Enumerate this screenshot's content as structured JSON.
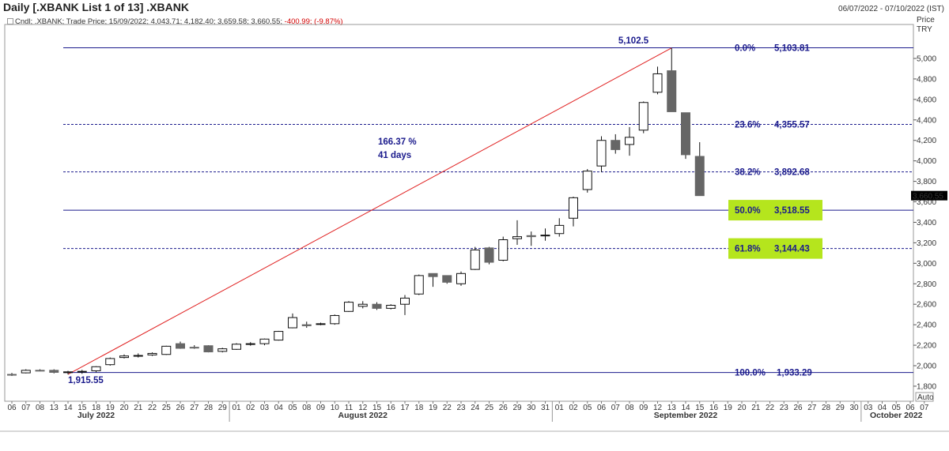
{
  "header": {
    "title": "Daily [.XBANK List 1 of 13] .XBANK",
    "date_range": "06/07/2022 - 07/10/2022 (IST)",
    "legend_prefix": "Cndl; .XBANK; Trade Price; 15/09/2022; 4,043.71; 4,182.40; 3,659.58; 3,660.55;",
    "legend_change": "-400.99; (-9.87%)"
  },
  "colors": {
    "up_candle": "#ffffff",
    "down_candle": "#666666",
    "fib_line": "#1a1a8c",
    "trend_line": "#e02020",
    "highlight": "#b5e51d",
    "last_price_bg": "#000000"
  },
  "chart_data": {
    "type": "candlestick",
    "y_axis": {
      "label": "Price",
      "unit": "TRY",
      "ylim": [
        1700,
        5250
      ],
      "ticks": [
        1800,
        2000,
        2200,
        2400,
        2600,
        2800,
        3000,
        3200,
        3400,
        3600,
        3800,
        4000,
        4200,
        4400,
        4600,
        4800,
        5000
      ],
      "tick_labels": [
        "1,800",
        "2,000",
        "2,200",
        "2,400",
        "2,600",
        "2,800",
        "3,000",
        "3,200",
        "3,400",
        "3,600",
        "3,800",
        "4,000",
        "4,200",
        "4,400",
        "4,600",
        "4,800",
        "5,000"
      ],
      "scale_mode": "Auto"
    },
    "x_labels": [
      "06",
      "07",
      "08",
      "13",
      "14",
      "15",
      "18",
      "19",
      "20",
      "21",
      "22",
      "25",
      "26",
      "27",
      "28",
      "29",
      "01",
      "02",
      "03",
      "04",
      "05",
      "08",
      "09",
      "10",
      "11",
      "12",
      "15",
      "16",
      "17",
      "18",
      "19",
      "22",
      "23",
      "24",
      "25",
      "26",
      "29",
      "30",
      "31",
      "01",
      "02",
      "05",
      "06",
      "07",
      "08",
      "09",
      "12",
      "13",
      "14",
      "15",
      "16",
      "19",
      "20",
      "21",
      "22",
      "23",
      "26",
      "27",
      "28",
      "29",
      "30",
      "03",
      "04",
      "05",
      "06",
      "07"
    ],
    "months": [
      {
        "label": "July 2022",
        "index": 6
      },
      {
        "label": "August 2022",
        "index": 25
      },
      {
        "label": "September 2022",
        "index": 48
      },
      {
        "label": "October 2022",
        "index": 63
      }
    ],
    "month_separators": [
      16,
      39,
      61
    ],
    "candles": [
      {
        "o": 1915,
        "h": 1930,
        "l": 1900,
        "c": 1912
      },
      {
        "o": 1930,
        "h": 1965,
        "l": 1925,
        "c": 1955
      },
      {
        "o": 1955,
        "h": 1965,
        "l": 1945,
        "c": 1952
      },
      {
        "o": 1955,
        "h": 1965,
        "l": 1925,
        "c": 1935
      },
      {
        "o": 1935,
        "h": 1950,
        "l": 1915,
        "c": 1940
      },
      {
        "o": 1940,
        "h": 1960,
        "l": 1920,
        "c": 1945
      },
      {
        "o": 1950,
        "h": 1995,
        "l": 1935,
        "c": 1990
      },
      {
        "o": 2010,
        "h": 2080,
        "l": 2000,
        "c": 2070
      },
      {
        "o": 2080,
        "h": 2110,
        "l": 2070,
        "c": 2095
      },
      {
        "o": 2095,
        "h": 2120,
        "l": 2080,
        "c": 2100
      },
      {
        "o": 2105,
        "h": 2130,
        "l": 2095,
        "c": 2120
      },
      {
        "o": 2110,
        "h": 2195,
        "l": 2105,
        "c": 2190
      },
      {
        "o": 2215,
        "h": 2235,
        "l": 2165,
        "c": 2170
      },
      {
        "o": 2180,
        "h": 2200,
        "l": 2165,
        "c": 2175
      },
      {
        "o": 2195,
        "h": 2200,
        "l": 2130,
        "c": 2135
      },
      {
        "o": 2140,
        "h": 2175,
        "l": 2130,
        "c": 2165
      },
      {
        "o": 2160,
        "h": 2220,
        "l": 2155,
        "c": 2210
      },
      {
        "o": 2210,
        "h": 2230,
        "l": 2195,
        "c": 2215
      },
      {
        "o": 2215,
        "h": 2265,
        "l": 2200,
        "c": 2260
      },
      {
        "o": 2250,
        "h": 2340,
        "l": 2245,
        "c": 2335
      },
      {
        "o": 2370,
        "h": 2510,
        "l": 2365,
        "c": 2470
      },
      {
        "o": 2400,
        "h": 2430,
        "l": 2370,
        "c": 2390
      },
      {
        "o": 2410,
        "h": 2420,
        "l": 2395,
        "c": 2410
      },
      {
        "o": 2410,
        "h": 2500,
        "l": 2400,
        "c": 2490
      },
      {
        "o": 2530,
        "h": 2630,
        "l": 2525,
        "c": 2620
      },
      {
        "o": 2580,
        "h": 2630,
        "l": 2560,
        "c": 2600
      },
      {
        "o": 2600,
        "h": 2620,
        "l": 2545,
        "c": 2560
      },
      {
        "o": 2560,
        "h": 2600,
        "l": 2550,
        "c": 2590
      },
      {
        "o": 2600,
        "h": 2690,
        "l": 2495,
        "c": 2660
      },
      {
        "o": 2700,
        "h": 2890,
        "l": 2690,
        "c": 2880
      },
      {
        "o": 2900,
        "h": 2900,
        "l": 2770,
        "c": 2870
      },
      {
        "o": 2880,
        "h": 2880,
        "l": 2800,
        "c": 2815
      },
      {
        "o": 2800,
        "h": 2920,
        "l": 2780,
        "c": 2900
      },
      {
        "o": 2940,
        "h": 3160,
        "l": 2935,
        "c": 3130
      },
      {
        "o": 3150,
        "h": 3160,
        "l": 2990,
        "c": 3010
      },
      {
        "o": 3030,
        "h": 3260,
        "l": 3020,
        "c": 3230
      },
      {
        "o": 3240,
        "h": 3420,
        "l": 3180,
        "c": 3260
      },
      {
        "o": 3270,
        "h": 3310,
        "l": 3170,
        "c": 3260
      },
      {
        "o": 3270,
        "h": 3340,
        "l": 3220,
        "c": 3275
      },
      {
        "o": 3290,
        "h": 3440,
        "l": 3260,
        "c": 3370
      },
      {
        "o": 3440,
        "h": 3650,
        "l": 3360,
        "c": 3640
      },
      {
        "o": 3720,
        "h": 3920,
        "l": 3690,
        "c": 3900
      },
      {
        "o": 3950,
        "h": 4240,
        "l": 3890,
        "c": 4200
      },
      {
        "o": 4200,
        "h": 4260,
        "l": 4070,
        "c": 4110
      },
      {
        "o": 4160,
        "h": 4330,
        "l": 4050,
        "c": 4230
      },
      {
        "o": 4300,
        "h": 4580,
        "l": 4270,
        "c": 4570
      },
      {
        "o": 4670,
        "h": 4920,
        "l": 4650,
        "c": 4850
      },
      {
        "o": 4880,
        "h": 5102.5,
        "l": 4480,
        "c": 4480
      },
      {
        "o": 4470,
        "h": 4470,
        "l": 4020,
        "c": 4060
      },
      {
        "o": 4043.71,
        "h": 4182.4,
        "l": 3659.58,
        "c": 3660.55
      }
    ],
    "last_price": "3,660.55",
    "trend_line": {
      "from_index": 4,
      "from_value": 1915.55,
      "to_index": 47,
      "to_value": 5102.5
    },
    "annotations": {
      "high_label": "5,102.5",
      "low_label": "1,915.55",
      "gain_pct": "166.37 %",
      "duration": "41 days"
    },
    "fib_levels": [
      {
        "pct": "0.0%",
        "value_label": "5,103.81",
        "value": 5103.81,
        "style": "solid",
        "highlight": false
      },
      {
        "pct": "23.6%",
        "value_label": "4,355.57",
        "value": 4355.57,
        "style": "dashed",
        "highlight": false
      },
      {
        "pct": "38.2%",
        "value_label": "3,892.68",
        "value": 3892.68,
        "style": "dashed",
        "highlight": false
      },
      {
        "pct": "50.0%",
        "value_label": "3,518.55",
        "value": 3518.55,
        "style": "solid",
        "highlight": true
      },
      {
        "pct": "61.8%",
        "value_label": "3,144.43",
        "value": 3144.43,
        "style": "dashed",
        "highlight": true
      },
      {
        "pct": "100.0%",
        "value_label": "1,933.29",
        "value": 1933.29,
        "style": "solid",
        "highlight": false
      }
    ]
  }
}
